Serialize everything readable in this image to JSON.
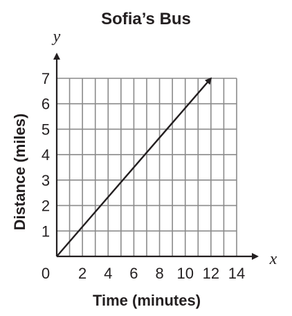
{
  "chart_data": {
    "type": "line",
    "title": "Sofia’s Bus",
    "xlabel": "Time (minutes)",
    "ylabel": "Distance (miles)",
    "x_var": "x",
    "y_var": "y",
    "origin_label": "0",
    "xlim": [
      0,
      14
    ],
    "ylim": [
      0,
      7
    ],
    "x_ticks": [
      2,
      4,
      6,
      8,
      10,
      12,
      14
    ],
    "y_ticks": [
      1,
      2,
      3,
      4,
      5,
      6,
      7
    ],
    "grid": true,
    "series": [
      {
        "points": [
          [
            0,
            0
          ],
          [
            12,
            7
          ]
        ],
        "arrow_end": true
      }
    ]
  }
}
